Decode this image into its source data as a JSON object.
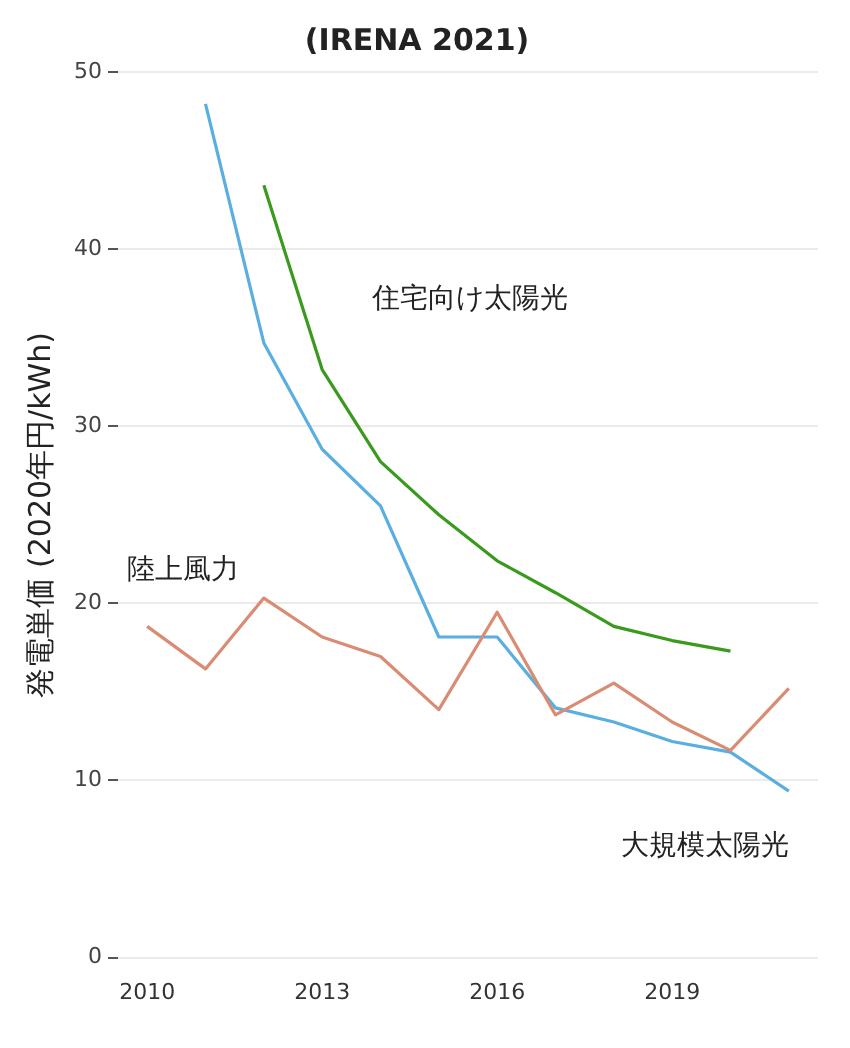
{
  "chart_data": {
    "type": "line",
    "title": "(IRENA 2021)",
    "ylabel": "発電単価 (2020年円/kWh)",
    "xlim": [
      2009.5,
      2021.5
    ],
    "xticks": [
      2010,
      2013,
      2016,
      2019
    ],
    "ylim": [
      0,
      50
    ],
    "yticks": [
      0,
      10,
      20,
      30,
      40,
      50
    ],
    "grid": "y",
    "legend": false,
    "marker": "none",
    "line_style": "solid",
    "series": [
      {
        "name": "住宅向け太陽光",
        "color": "#3a9a1e",
        "x": [
          2012,
          2013,
          2014,
          2015,
          2016,
          2017,
          2018,
          2019,
          2020
        ],
        "values": [
          43.6,
          33.2,
          28.0,
          25.0,
          22.4,
          20.6,
          18.7,
          17.9,
          17.3
        ]
      },
      {
        "name": "陸上風力",
        "color": "#d98c73",
        "x": [
          2010,
          2011,
          2012,
          2013,
          2014,
          2015,
          2016,
          2017,
          2018,
          2019,
          2020,
          2021
        ],
        "values": [
          18.7,
          16.3,
          20.3,
          18.1,
          17.0,
          14.0,
          19.5,
          13.7,
          15.5,
          13.3,
          11.7,
          15.2
        ]
      },
      {
        "name": "大規模太陽光",
        "color": "#5aaee0",
        "x": [
          2011,
          2012,
          2013,
          2014,
          2015,
          2016,
          2017,
          2018,
          2019,
          2020,
          2021
        ],
        "values": [
          48.2,
          34.7,
          28.7,
          25.5,
          18.1,
          18.1,
          14.1,
          13.3,
          12.2,
          11.6,
          9.4
        ]
      }
    ]
  }
}
